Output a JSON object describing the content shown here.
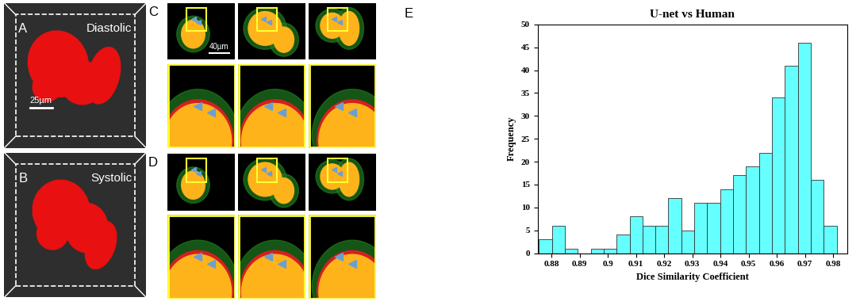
{
  "chart_data": {
    "type": "histogram",
    "title": "U-net vs Human",
    "x_label": "Dice Similarity Coefficient",
    "y_label": "Frequency",
    "bins": [
      0.8755,
      0.8801,
      0.8847,
      0.8893,
      0.8939,
      0.8985,
      0.9031,
      0.9077,
      0.9123,
      0.9169,
      0.9215,
      0.9261,
      0.9307,
      0.9353,
      0.9399,
      0.9445,
      0.9491,
      0.9537,
      0.9583,
      0.9629,
      0.9675,
      0.9721,
      0.9767,
      0.9813
    ],
    "values": [
      3,
      6,
      1,
      0,
      1,
      1,
      4,
      8,
      6,
      6,
      12,
      5,
      11,
      11,
      14,
      17,
      19,
      22,
      34,
      41,
      46,
      16,
      6
    ],
    "color": "#66ffff",
    "xlim": [
      0.875,
      0.985
    ],
    "xticks": [
      0.88,
      0.89,
      0.9,
      0.91,
      0.92,
      0.93,
      0.94,
      0.95,
      0.96,
      0.97,
      0.98
    ],
    "ylim": [
      0,
      50
    ],
    "yticks": [
      0,
      5,
      10,
      15,
      20,
      25,
      30,
      35,
      40,
      45,
      50
    ],
    "grid": false
  },
  "panels": {
    "A": {
      "label": "A",
      "title": "Diastolic",
      "scale_bar": "25µm"
    },
    "B": {
      "label": "B",
      "title": "Systolic"
    },
    "C": {
      "label": "C",
      "scale_bar": "40µm"
    },
    "D": {
      "label": "D"
    },
    "E": {
      "label": "E"
    }
  }
}
